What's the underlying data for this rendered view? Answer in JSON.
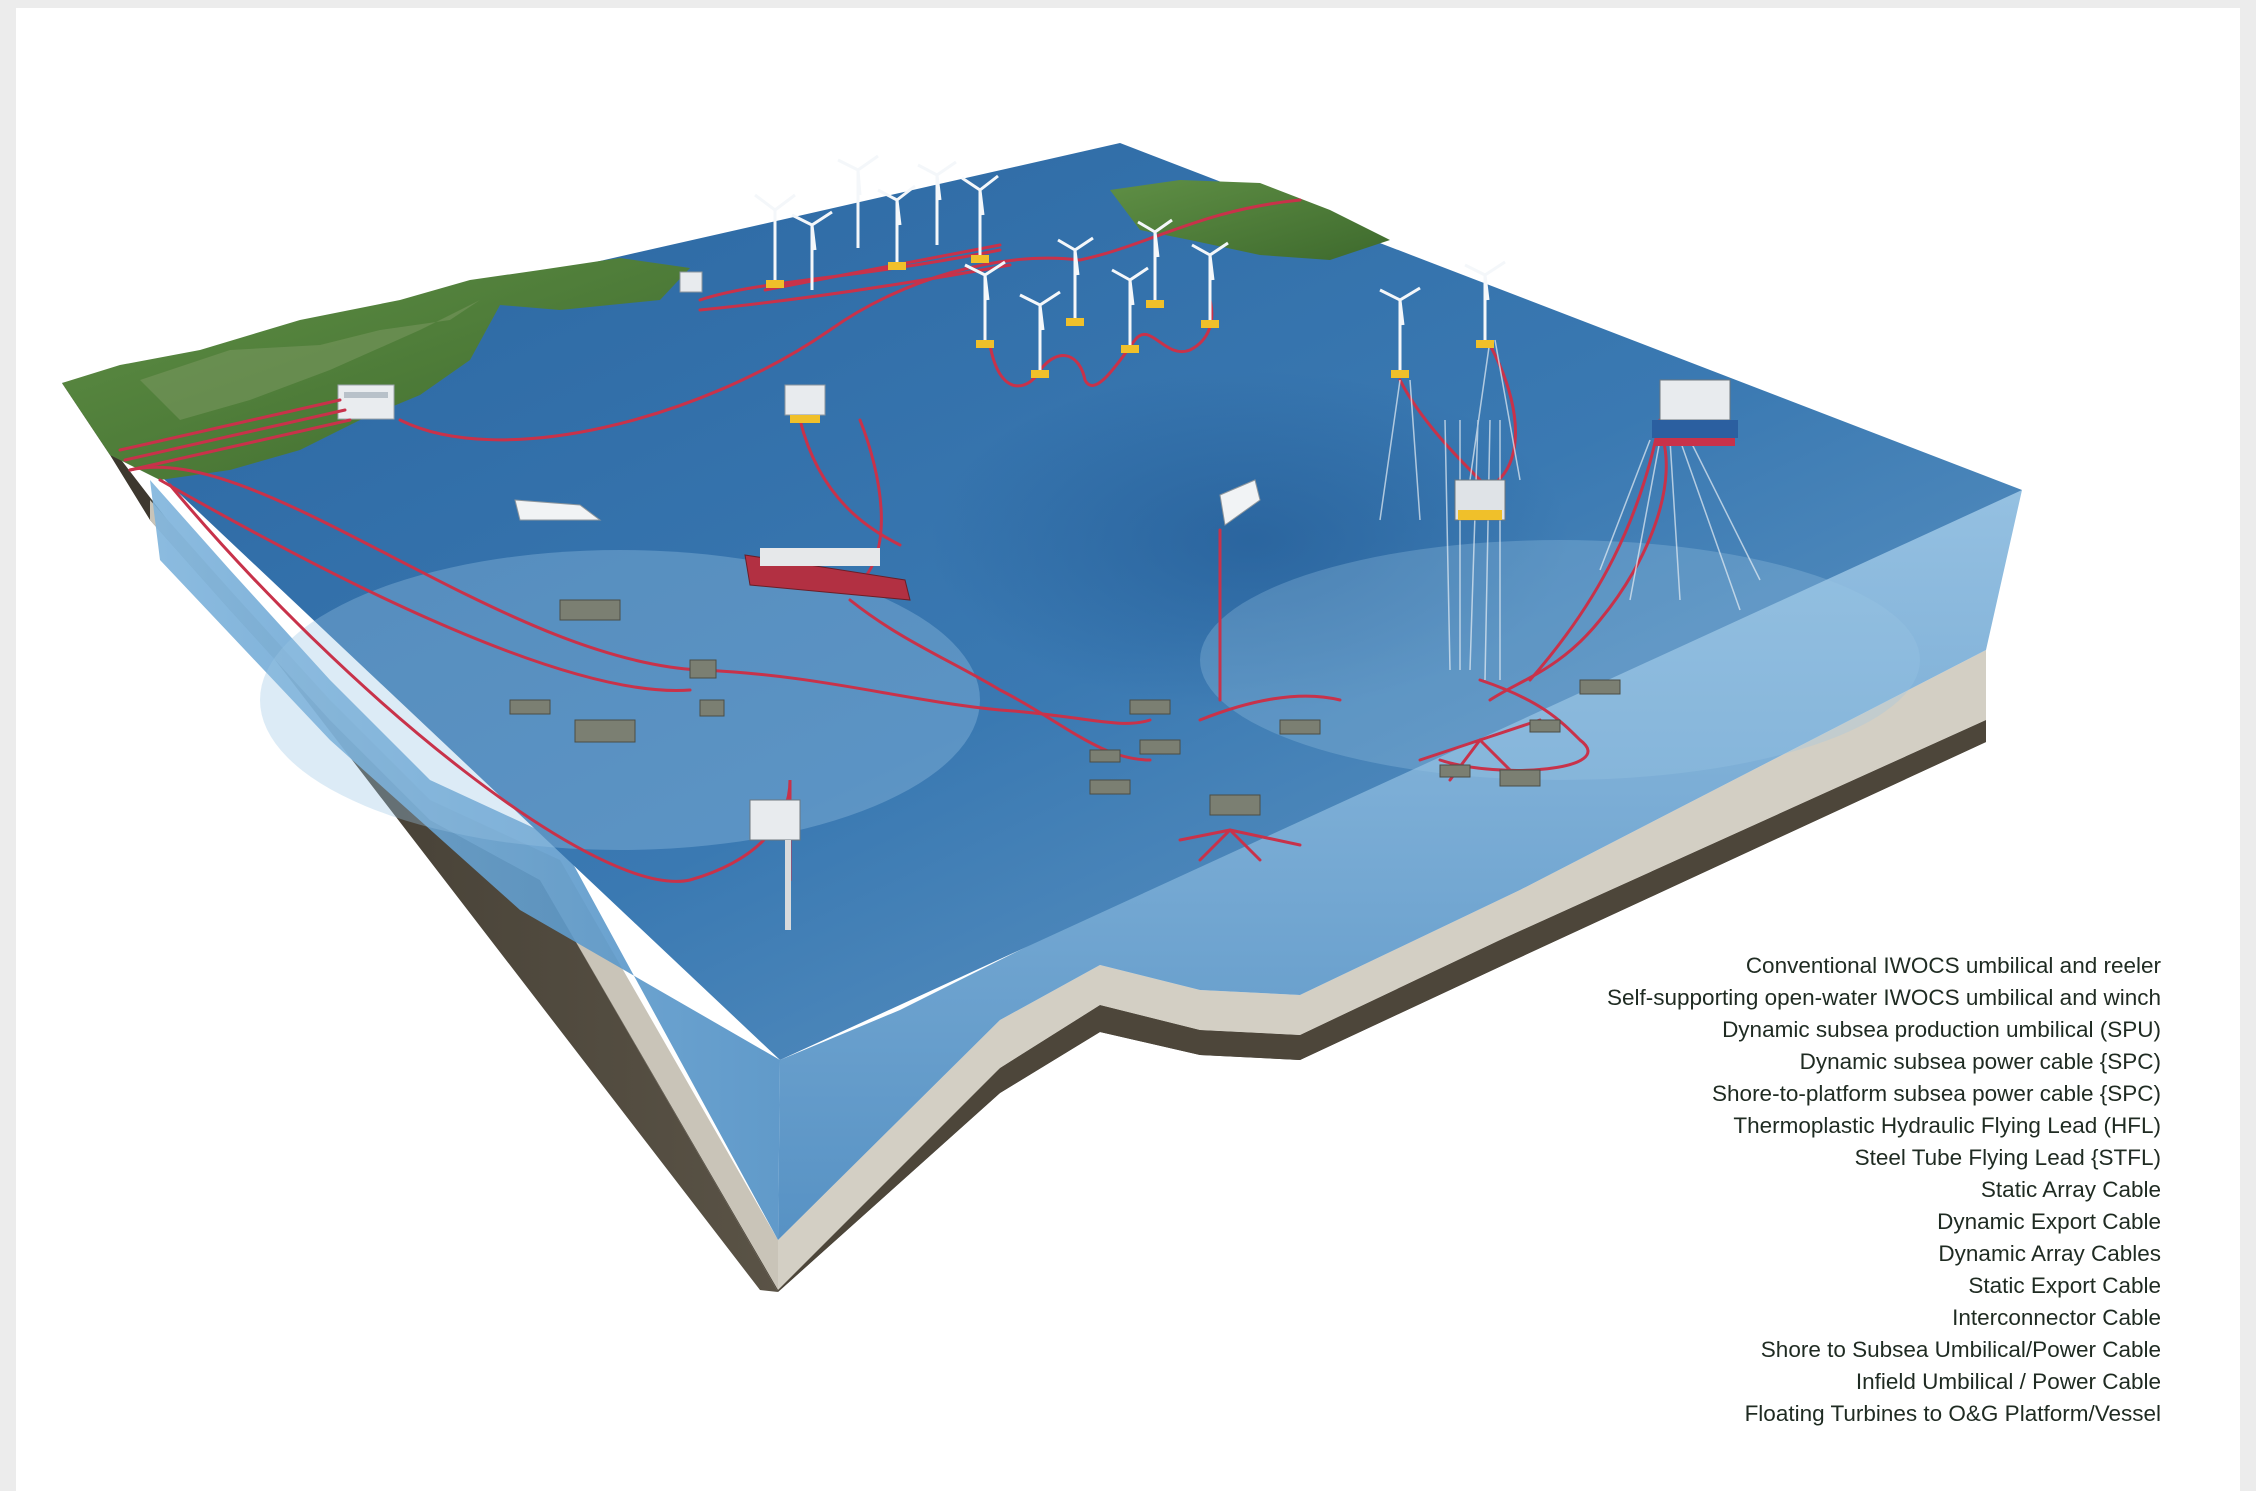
{
  "legend": {
    "items": [
      "Conventional IWOCS umbilical and reeler",
      "Self-supporting open-water IWOCS umbilical and winch",
      "Dynamic subsea production umbilical (SPU)",
      "Dynamic subsea power cable {SPC)",
      "Shore-to-platform subsea power cable {SPC)",
      "Thermoplastic Hydraulic Flying Lead (HFL)",
      "Steel Tube Flying Lead {STFL)",
      "Static Array Cable",
      "Dynamic Export Cable",
      "Dynamic Array Cables",
      "Static Export Cable",
      "Interconnector Cable",
      "Shore to Subsea Umbilical/Power Cable",
      "Infield Umbilical / Power Cable",
      "Floating Turbines to O&G Platform/Vessel"
    ]
  },
  "colors": {
    "sea_surface": "#2f6fa8",
    "sea_deep": "#6f9fc6",
    "land": "#4f7e3a",
    "cable": "#c8324a",
    "sediment": "#d4d0c6",
    "bedrock": "#4a4438",
    "text": "#1f2b22"
  },
  "icons": {
    "turbine": "wind-turbine-icon",
    "platform": "oil-platform-icon",
    "vessel": "vessel-icon",
    "manifold": "subsea-manifold-icon",
    "substation": "onshore-substation-icon"
  }
}
